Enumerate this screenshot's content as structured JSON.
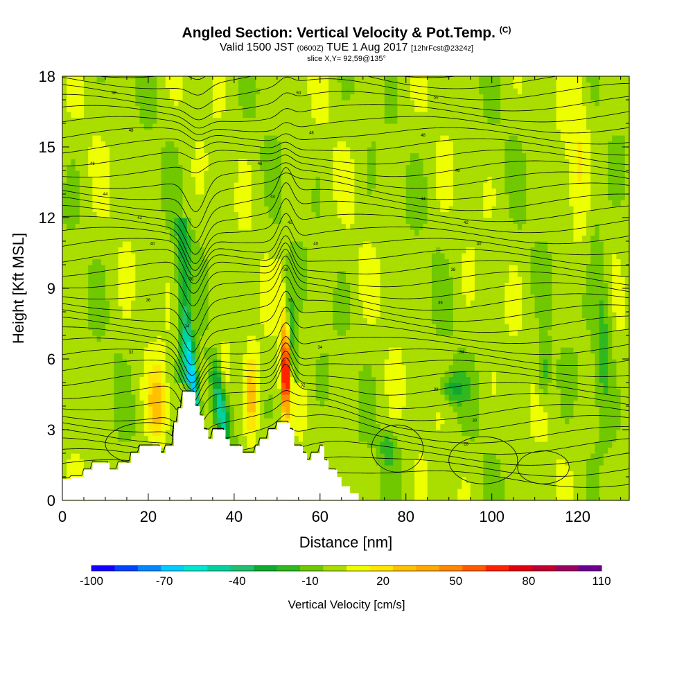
{
  "header": {
    "title": "Angled Section: Vertical Velocity & Pot.Temp.",
    "title_suffix": "(C)",
    "valid_prefix": "Valid 1500 JST",
    "valid_utc": "(0600Z)",
    "valid_date": "TUE 1 Aug 2017",
    "forecast": "[12hrFcst@2324z]",
    "slice": "slice X,Y= 92,59@135°"
  },
  "chart_data": {
    "type": "heatmap",
    "xlabel": "Distance [nm]",
    "ylabel": "Height [Kft MSL]",
    "xlim": [
      0,
      132
    ],
    "ylim": [
      0,
      18
    ],
    "x_ticks": [
      0,
      20,
      40,
      60,
      80,
      100,
      120
    ],
    "y_ticks": [
      0,
      3,
      6,
      9,
      12,
      15,
      18
    ],
    "colorbar": {
      "title": "Vertical Velocity [cm/s]",
      "range": [
        -100,
        110
      ],
      "tick_labels": [
        "-100",
        "-70",
        "-40",
        "-10",
        "20",
        "50",
        "80",
        "110"
      ],
      "tick_values": [
        -100,
        -70,
        -40,
        -10,
        20,
        50,
        80,
        110
      ],
      "colors": [
        "#1400ff",
        "#0044ff",
        "#0088ff",
        "#00ccff",
        "#00e8d0",
        "#00d2a0",
        "#20c070",
        "#10aa30",
        "#30b820",
        "#70c800",
        "#aadd00",
        "#eeff00",
        "#ffe600",
        "#ffc000",
        "#ffa800",
        "#ff8800",
        "#ff5a00",
        "#ff2200",
        "#e00010",
        "#c00030",
        "#9a0060",
        "#6a0090"
      ]
    },
    "terrain_kft": [
      [
        0,
        0.9
      ],
      [
        2,
        0.9
      ],
      [
        2,
        1.0
      ],
      [
        5,
        1.0
      ],
      [
        5,
        1.3
      ],
      [
        7,
        1.3
      ],
      [
        7,
        1.6
      ],
      [
        11,
        1.6
      ],
      [
        11,
        1.3
      ],
      [
        13,
        1.3
      ],
      [
        13,
        1.6
      ],
      [
        16,
        1.6
      ],
      [
        16,
        2.0
      ],
      [
        18,
        2.0
      ],
      [
        18,
        2.3
      ],
      [
        23,
        2.3
      ],
      [
        23,
        2.0
      ],
      [
        24,
        2.0
      ],
      [
        24,
        2.3
      ],
      [
        26,
        2.3
      ],
      [
        26,
        3.3
      ],
      [
        27,
        3.3
      ],
      [
        27,
        3.9
      ],
      [
        28,
        3.9
      ],
      [
        28,
        4.6
      ],
      [
        31,
        4.6
      ],
      [
        31,
        4.0
      ],
      [
        32,
        4.0
      ],
      [
        32,
        3.6
      ],
      [
        33,
        3.6
      ],
      [
        33,
        3.0
      ],
      [
        34,
        3.0
      ],
      [
        34,
        2.6
      ],
      [
        35,
        2.6
      ],
      [
        35,
        3.0
      ],
      [
        38,
        3.0
      ],
      [
        38,
        2.6
      ],
      [
        39,
        2.6
      ],
      [
        39,
        2.3
      ],
      [
        42,
        2.3
      ],
      [
        42,
        2.0
      ],
      [
        45,
        2.0
      ],
      [
        45,
        2.3
      ],
      [
        46,
        2.3
      ],
      [
        46,
        2.6
      ],
      [
        48,
        2.6
      ],
      [
        48,
        3.0
      ],
      [
        50,
        3.0
      ],
      [
        50,
        3.3
      ],
      [
        53,
        3.3
      ],
      [
        53,
        3.0
      ],
      [
        54,
        3.0
      ],
      [
        54,
        2.3
      ],
      [
        56,
        2.3
      ],
      [
        56,
        2.0
      ],
      [
        57,
        2.0
      ],
      [
        57,
        1.7
      ],
      [
        58,
        1.7
      ],
      [
        58,
        2.0
      ],
      [
        60,
        2.0
      ],
      [
        60,
        2.3
      ],
      [
        61,
        2.3
      ],
      [
        61,
        1.7
      ],
      [
        62,
        1.7
      ],
      [
        62,
        1.3
      ],
      [
        64,
        1.3
      ],
      [
        64,
        1.0
      ],
      [
        65,
        1.0
      ],
      [
        65,
        0.6
      ],
      [
        67,
        0.6
      ],
      [
        67,
        0.3
      ],
      [
        69,
        0.3
      ],
      [
        69,
        0.0
      ],
      [
        132,
        0.0
      ]
    ],
    "theta_contour_labels": [
      {
        "label": "50",
        "x": 12,
        "y": 17.3
      },
      {
        "label": "50",
        "x": 55,
        "y": 17.3
      },
      {
        "label": "50",
        "x": 87,
        "y": 17.1
      },
      {
        "label": "48",
        "x": 16,
        "y": 15.7
      },
      {
        "label": "48",
        "x": 58,
        "y": 15.6
      },
      {
        "label": "48",
        "x": 84,
        "y": 15.5
      },
      {
        "label": "46",
        "x": 7,
        "y": 14.3
      },
      {
        "label": "46",
        "x": 46,
        "y": 14.3
      },
      {
        "label": "46",
        "x": 92,
        "y": 14.0
      },
      {
        "label": "44",
        "x": 10,
        "y": 13.0
      },
      {
        "label": "44",
        "x": 49,
        "y": 12.9
      },
      {
        "label": "44",
        "x": 84,
        "y": 12.8
      },
      {
        "label": "42",
        "x": 18,
        "y": 12.0
      },
      {
        "label": "42",
        "x": 53,
        "y": 11.8
      },
      {
        "label": "42",
        "x": 94,
        "y": 11.8
      },
      {
        "label": "40",
        "x": 21,
        "y": 10.9
      },
      {
        "label": "40",
        "x": 59,
        "y": 10.9
      },
      {
        "label": "40",
        "x": 97,
        "y": 10.9
      },
      {
        "label": "38",
        "x": 30,
        "y": 9.4
      },
      {
        "label": "38",
        "x": 52,
        "y": 9.8
      },
      {
        "label": "38",
        "x": 91,
        "y": 9.8
      },
      {
        "label": "36",
        "x": 20,
        "y": 8.5
      },
      {
        "label": "36",
        "x": 53,
        "y": 8.5
      },
      {
        "label": "36",
        "x": 88,
        "y": 8.4
      },
      {
        "label": "34",
        "x": 29,
        "y": 7.4
      },
      {
        "label": "34",
        "x": 60,
        "y": 6.5
      },
      {
        "label": "34",
        "x": 93,
        "y": 6.3
      },
      {
        "label": "32",
        "x": 16,
        "y": 6.3
      },
      {
        "label": "32",
        "x": 56,
        "y": 4.9
      },
      {
        "label": "32",
        "x": 87,
        "y": 4.7
      },
      {
        "label": "30",
        "x": 96,
        "y": 3.4
      },
      {
        "label": "28",
        "x": 94,
        "y": 2.4
      }
    ]
  }
}
